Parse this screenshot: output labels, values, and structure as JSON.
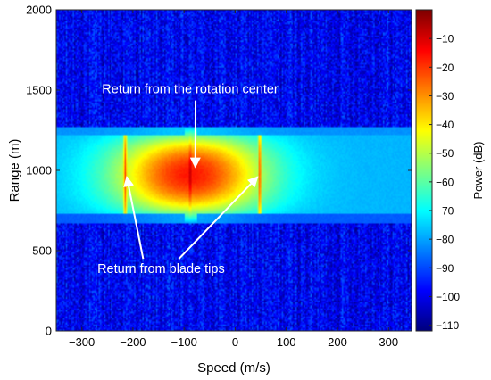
{
  "chart_data": {
    "type": "heatmap",
    "xlabel": "Speed (m/s)",
    "ylabel": "Range (m)",
    "xlim": [
      -350,
      345
    ],
    "ylim": [
      0,
      2000
    ],
    "xticks": [
      -300,
      -200,
      -100,
      0,
      100,
      200,
      300
    ],
    "yticks": [
      0,
      500,
      1000,
      1500,
      2000
    ],
    "colorbar": {
      "label": "Power (dB)",
      "range": [
        -112,
        0
      ],
      "ticks": [
        -10,
        -20,
        -30,
        -40,
        -50,
        -60,
        -70,
        -80,
        -90,
        -100,
        -110
      ],
      "colormap": "jet"
    },
    "background_power_db": {
      "min": -112,
      "max": -86
    },
    "target_band": {
      "range_min": 675,
      "range_max": 1270,
      "edge_power_db": -78,
      "bright_band_range_min": 1220,
      "bright_band_range_max": 1270,
      "bright_band_power_db": -82,
      "dark_band_range_min": 675,
      "dark_band_range_max": 730,
      "dark_band_power_db": -88
    },
    "features": [
      {
        "kind": "rotation-center",
        "speed": -88,
        "range_min": 675,
        "range_max": 1270,
        "peak_power_db": -8
      },
      {
        "kind": "blade-tip",
        "speed": -215,
        "range_min": 675,
        "range_max": 1270,
        "peak_power_db": -22
      },
      {
        "kind": "blade-tip",
        "speed": 48,
        "range_min": 675,
        "range_max": 1270,
        "peak_power_db": -24
      }
    ],
    "annotations": [
      {
        "text": "Return from the rotation center",
        "speed": -88,
        "range": 1480,
        "arrow_to": {
          "speed": -78,
          "range": 1020
        }
      },
      {
        "text": "Return from blade tips",
        "speed": -145,
        "range": 360,
        "arrow_to": [
          {
            "speed": -212,
            "range": 960
          },
          {
            "speed": 44,
            "range": 960
          }
        ]
      }
    ]
  }
}
